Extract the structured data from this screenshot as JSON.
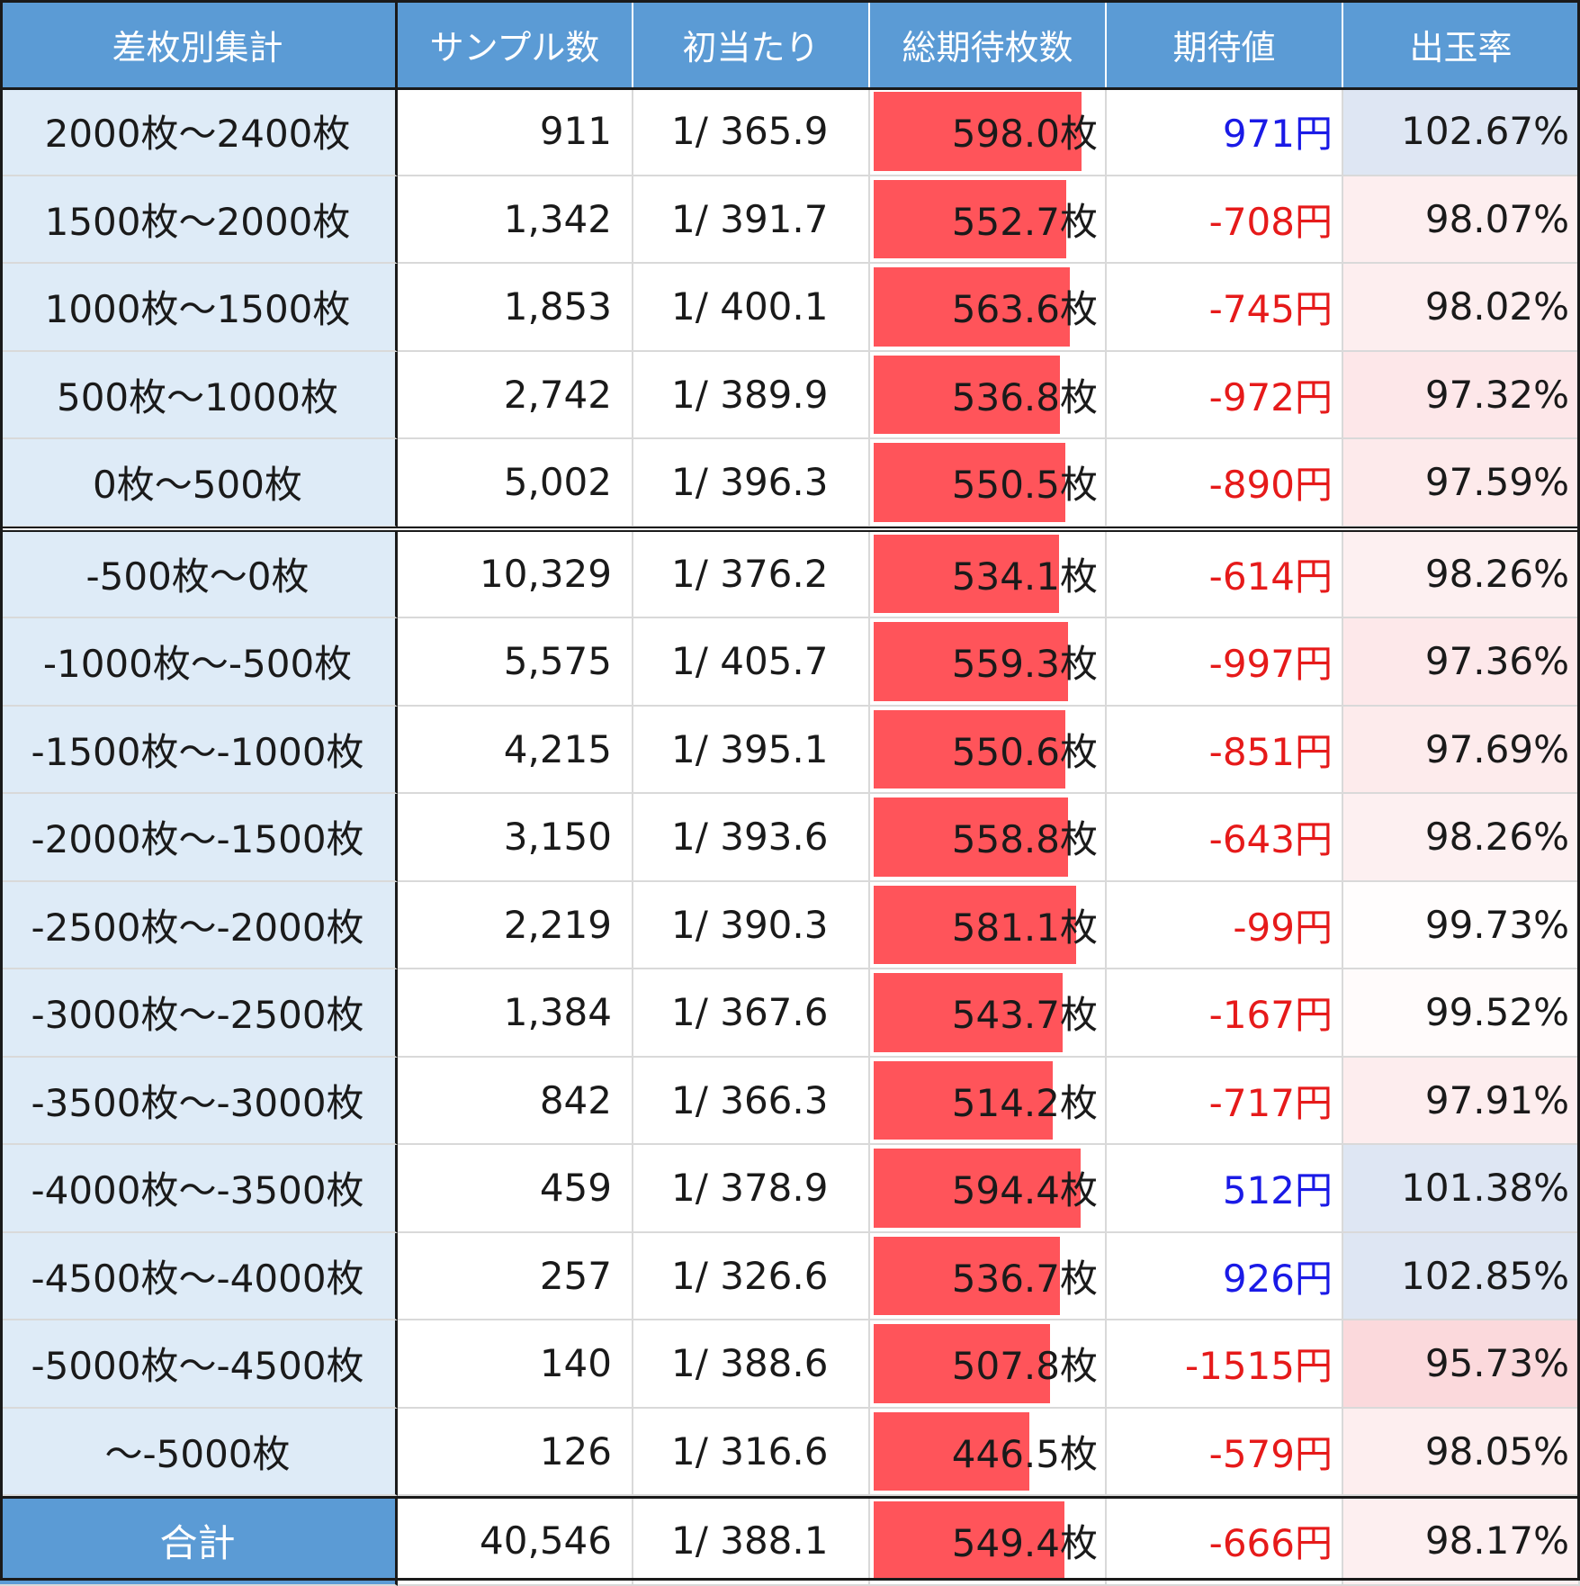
{
  "headers": [
    "差枚別集計",
    "サンプル数",
    "初当たり",
    "総期待枚数",
    "期待値",
    "出玉率"
  ],
  "chart_data": {
    "type": "table",
    "columns": [
      "差枚別集計",
      "サンプル数",
      "初当たり",
      "総期待枚数",
      "期待値",
      "出玉率"
    ],
    "rows": [
      {
        "label": "2000枚〜2400枚",
        "samples": "911",
        "first_hit": "1/ 365.9",
        "expected_medals": 598.0,
        "expected_text": "598.0枚",
        "ev": 971,
        "ev_text": "971円",
        "rate": 102.67,
        "rate_text": "102.67%"
      },
      {
        "label": "1500枚〜2000枚",
        "samples": "1,342",
        "first_hit": "1/ 391.7",
        "expected_medals": 552.7,
        "expected_text": "552.7枚",
        "ev": -708,
        "ev_text": "-708円",
        "rate": 98.07,
        "rate_text": "98.07%"
      },
      {
        "label": "1000枚〜1500枚",
        "samples": "1,853",
        "first_hit": "1/ 400.1",
        "expected_medals": 563.6,
        "expected_text": "563.6枚",
        "ev": -745,
        "ev_text": "-745円",
        "rate": 98.02,
        "rate_text": "98.02%"
      },
      {
        "label": "500枚〜1000枚",
        "samples": "2,742",
        "first_hit": "1/ 389.9",
        "expected_medals": 536.8,
        "expected_text": "536.8枚",
        "ev": -972,
        "ev_text": "-972円",
        "rate": 97.32,
        "rate_text": "97.32%"
      },
      {
        "label": "0枚〜500枚",
        "samples": "5,002",
        "first_hit": "1/ 396.3",
        "expected_medals": 550.5,
        "expected_text": "550.5枚",
        "ev": -890,
        "ev_text": "-890円",
        "rate": 97.59,
        "rate_text": "97.59%"
      },
      {
        "label": "-500枚〜0枚",
        "samples": "10,329",
        "first_hit": "1/ 376.2",
        "expected_medals": 534.1,
        "expected_text": "534.1枚",
        "ev": -614,
        "ev_text": "-614円",
        "rate": 98.26,
        "rate_text": "98.26%"
      },
      {
        "label": "-1000枚〜-500枚",
        "samples": "5,575",
        "first_hit": "1/ 405.7",
        "expected_medals": 559.3,
        "expected_text": "559.3枚",
        "ev": -997,
        "ev_text": "-997円",
        "rate": 97.36,
        "rate_text": "97.36%"
      },
      {
        "label": "-1500枚〜-1000枚",
        "samples": "4,215",
        "first_hit": "1/ 395.1",
        "expected_medals": 550.6,
        "expected_text": "550.6枚",
        "ev": -851,
        "ev_text": "-851円",
        "rate": 97.69,
        "rate_text": "97.69%"
      },
      {
        "label": "-2000枚〜-1500枚",
        "samples": "3,150",
        "first_hit": "1/ 393.6",
        "expected_medals": 558.8,
        "expected_text": "558.8枚",
        "ev": -643,
        "ev_text": "-643円",
        "rate": 98.26,
        "rate_text": "98.26%"
      },
      {
        "label": "-2500枚〜-2000枚",
        "samples": "2,219",
        "first_hit": "1/ 390.3",
        "expected_medals": 581.1,
        "expected_text": "581.1枚",
        "ev": -99,
        "ev_text": "-99円",
        "rate": 99.73,
        "rate_text": "99.73%"
      },
      {
        "label": "-3000枚〜-2500枚",
        "samples": "1,384",
        "first_hit": "1/ 367.6",
        "expected_medals": 543.7,
        "expected_text": "543.7枚",
        "ev": -167,
        "ev_text": "-167円",
        "rate": 99.52,
        "rate_text": "99.52%"
      },
      {
        "label": "-3500枚〜-3000枚",
        "samples": "842",
        "first_hit": "1/ 366.3",
        "expected_medals": 514.2,
        "expected_text": "514.2枚",
        "ev": -717,
        "ev_text": "-717円",
        "rate": 97.91,
        "rate_text": "97.91%"
      },
      {
        "label": "-4000枚〜-3500枚",
        "samples": "459",
        "first_hit": "1/ 378.9",
        "expected_medals": 594.4,
        "expected_text": "594.4枚",
        "ev": 512,
        "ev_text": "512円",
        "rate": 101.38,
        "rate_text": "101.38%"
      },
      {
        "label": "-4500枚〜-4000枚",
        "samples": "257",
        "first_hit": "1/ 326.6",
        "expected_medals": 536.7,
        "expected_text": "536.7枚",
        "ev": 926,
        "ev_text": "926円",
        "rate": 102.85,
        "rate_text": "102.85%"
      },
      {
        "label": "-5000枚〜-4500枚",
        "samples": "140",
        "first_hit": "1/ 388.6",
        "expected_medals": 507.8,
        "expected_text": "507.8枚",
        "ev": -1515,
        "ev_text": "-1515円",
        "rate": 95.73,
        "rate_text": "95.73%"
      },
      {
        "label": "〜-5000枚",
        "samples": "126",
        "first_hit": "1/ 316.6",
        "expected_medals": 446.5,
        "expected_text": "446.5枚",
        "ev": -579,
        "ev_text": "-579円",
        "rate": 98.05,
        "rate_text": "98.05%"
      }
    ],
    "total": {
      "label": "合計",
      "samples": "40,546",
      "first_hit": "1/ 388.1",
      "expected_medals": 549.4,
      "expected_text": "549.4枚",
      "ev": -666,
      "ev_text": "-666円",
      "rate": 98.17,
      "rate_text": "98.17%"
    },
    "bar_scale_max": 660
  },
  "colors": {
    "header_bg": "#5b9bd5",
    "label_bg": "#deebf7",
    "bar": "#ff545a",
    "positive": "#1a1ae6",
    "negative": "#e61a1a",
    "rate_high": "#dee6f3",
    "rate_low": "#fbd9dc"
  }
}
